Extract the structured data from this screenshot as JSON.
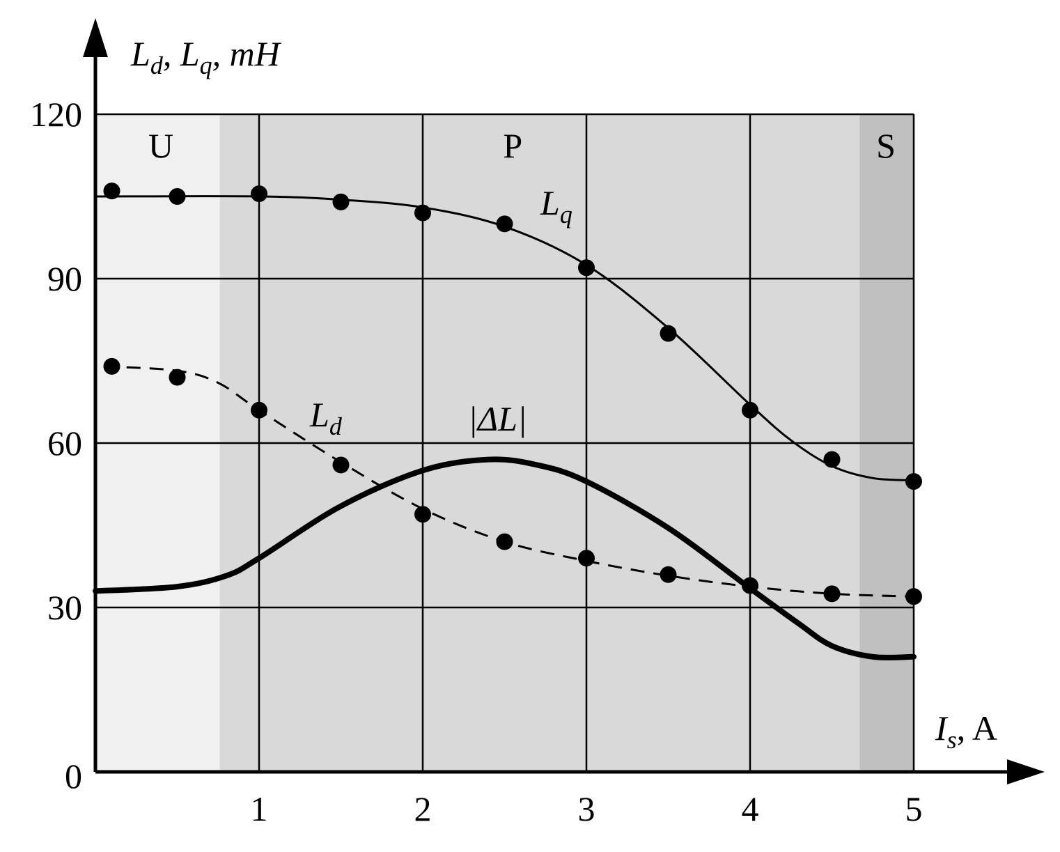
{
  "chart_data": {
    "type": "line",
    "x_axis": {
      "label_main": "I",
      "label_sub": "s",
      "label_unit": ", A",
      "ticks": [
        "1",
        "2",
        "3",
        "4",
        "5"
      ],
      "tick_values": [
        1,
        2,
        3,
        4,
        5
      ],
      "zero_label": "0",
      "range": [
        0,
        5
      ]
    },
    "y_axis": {
      "label_parts": [
        {
          "t": "L",
          "sub": false
        },
        {
          "t": "d",
          "sub": true
        },
        {
          "t": ", ",
          "sub": false
        },
        {
          "t": "L",
          "sub": false
        },
        {
          "t": "q",
          "sub": true
        },
        {
          "t": ", mH",
          "sub": false
        }
      ],
      "ticks": [
        "30",
        "60",
        "90",
        "120"
      ],
      "tick_values": [
        30,
        60,
        90,
        120
      ],
      "range": [
        0,
        120
      ]
    },
    "grid": true,
    "regions": [
      {
        "label": "U",
        "x0": 0,
        "x1": 0.76,
        "color": "#f0f0f0"
      },
      {
        "label": "P",
        "x0": 0.76,
        "x1": 4.67,
        "color": "#d9d9d9"
      },
      {
        "label": "S",
        "x0": 4.67,
        "x1": 5.0,
        "color": "#c0c0c0"
      }
    ],
    "series": [
      {
        "name_main": "L",
        "name_sub": "q",
        "style": "solid",
        "stroke_width": 3,
        "curve": [
          [
            0.0,
            105
          ],
          [
            1.0,
            105
          ],
          [
            1.5,
            104.4
          ],
          [
            2.0,
            103
          ],
          [
            2.5,
            99.5
          ],
          [
            3.0,
            92.5
          ],
          [
            3.5,
            81
          ],
          [
            4.0,
            67
          ],
          [
            4.25,
            60.5
          ],
          [
            4.5,
            55.8
          ],
          [
            4.75,
            53.6
          ],
          [
            5.0,
            53.2
          ]
        ],
        "points": [
          [
            0.1,
            106
          ],
          [
            0.5,
            105
          ],
          [
            1.0,
            105.5
          ],
          [
            1.5,
            104
          ],
          [
            2.0,
            102
          ],
          [
            2.5,
            100
          ],
          [
            3.0,
            92
          ],
          [
            3.5,
            80
          ],
          [
            4.0,
            66
          ],
          [
            4.5,
            57
          ],
          [
            5.0,
            53
          ]
        ]
      },
      {
        "name_main": "L",
        "name_sub": "d",
        "style": "dashed",
        "stroke_width": 3,
        "curve": [
          [
            0.05,
            74
          ],
          [
            0.5,
            73.2
          ],
          [
            0.75,
            71
          ],
          [
            1.0,
            66
          ],
          [
            1.5,
            56.5
          ],
          [
            2.0,
            48
          ],
          [
            2.5,
            42
          ],
          [
            3.0,
            38.5
          ],
          [
            3.5,
            35.8
          ],
          [
            4.0,
            33.8
          ],
          [
            4.5,
            32.5
          ],
          [
            5.0,
            32
          ]
        ],
        "points": [
          [
            0.1,
            74
          ],
          [
            0.5,
            72
          ],
          [
            1.0,
            66
          ],
          [
            1.5,
            56
          ],
          [
            2.0,
            47
          ],
          [
            2.5,
            42
          ],
          [
            3.0,
            39
          ],
          [
            3.5,
            36
          ],
          [
            4.0,
            34
          ],
          [
            4.5,
            32.5
          ],
          [
            5.0,
            32
          ]
        ]
      },
      {
        "name": "|ΔL|",
        "style": "solid",
        "stroke_width": 8,
        "curve": [
          [
            0.0,
            33
          ],
          [
            0.5,
            33.8
          ],
          [
            0.8,
            35.8
          ],
          [
            1.0,
            39
          ],
          [
            1.5,
            48.5
          ],
          [
            2.0,
            55
          ],
          [
            2.4,
            57
          ],
          [
            2.7,
            56
          ],
          [
            3.0,
            53
          ],
          [
            3.5,
            44.5
          ],
          [
            4.0,
            33.5
          ],
          [
            4.3,
            27
          ],
          [
            4.5,
            23
          ],
          [
            4.75,
            21
          ],
          [
            5.0,
            21
          ]
        ],
        "points": []
      }
    ]
  }
}
